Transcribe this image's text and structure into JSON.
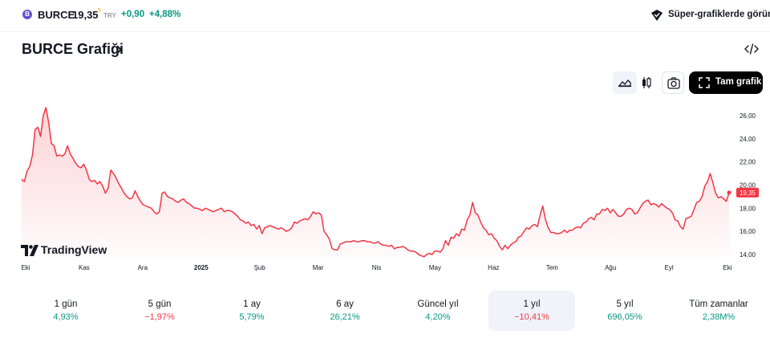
{
  "header": {
    "symbol": "BURCE",
    "logo_letter": "B",
    "price": "19,35",
    "price_superscript": "5",
    "currency": "TRY",
    "change": "+0,90",
    "change_percent": "+4,88%",
    "super_chart_link": "Süper-grafiklerde görün",
    "positive_color": "#089981",
    "negative_color": "#f23645"
  },
  "page": {
    "title": "BURCE Grafiği",
    "title_chevron": "›"
  },
  "toolbar": {
    "area_icon": "area-chart-icon",
    "candle_icon": "candlestick-icon",
    "camera_icon": "camera-icon",
    "fullscreen_label": "Tam grafik"
  },
  "chart_data": {
    "type": "area",
    "line_color": "#f23645",
    "y_ticks": [
      "26,00",
      "24,00",
      "22,00",
      "20,00",
      "18,00",
      "16,00",
      "14,00"
    ],
    "y_tick_values": [
      26,
      24,
      22,
      20,
      18,
      16,
      14
    ],
    "ylim": [
      13.3,
      27.3
    ],
    "x_ticks": [
      "Eki",
      "Kas",
      "Ara",
      "2025",
      "Şub",
      "Mar",
      "Nis",
      "May",
      "Haz",
      "Tem",
      "Ağu",
      "Eyl",
      "Eki"
    ],
    "x_tick_bold": [
      false,
      false,
      false,
      true,
      false,
      false,
      false,
      false,
      false,
      false,
      false,
      false,
      false
    ],
    "last_value_label": "19,35",
    "last_value": 19.35,
    "values": [
      20.5,
      20.3,
      21.2,
      21.6,
      22.6,
      24.8,
      25.0,
      24.2,
      26.0,
      26.7,
      25.4,
      23.6,
      23.4,
      22.5,
      22.6,
      22.5,
      22.7,
      23.4,
      22.7,
      22.3,
      21.9,
      21.6,
      21.5,
      21.8,
      21.3,
      20.5,
      20.3,
      20.4,
      20.1,
      20.3,
      19.9,
      19.3,
      19.7,
      21.3,
      21.0,
      20.6,
      20.1,
      19.7,
      19.3,
      19.0,
      18.8,
      18.9,
      19.5,
      19.0,
      18.6,
      18.3,
      18.2,
      18.1,
      18.0,
      17.7,
      17.5,
      17.7,
      19.3,
      19.4,
      19.0,
      18.9,
      18.8,
      18.6,
      18.5,
      18.7,
      18.8,
      18.5,
      18.4,
      18.2,
      18.0,
      18.0,
      17.9,
      17.8,
      18.0,
      17.9,
      17.8,
      17.7,
      17.8,
      17.9,
      18.0,
      17.7,
      17.8,
      17.8,
      17.7,
      17.5,
      17.3,
      17.0,
      16.9,
      16.7,
      16.8,
      16.5,
      16.6,
      16.2,
      16.5,
      15.8,
      16.3,
      16.4,
      16.5,
      16.4,
      16.3,
      16.2,
      16.3,
      16.2,
      16.0,
      16.1,
      16.3,
      16.8,
      16.7,
      16.9,
      17.0,
      17.1,
      17.0,
      17.3,
      17.7,
      17.5,
      17.6,
      17.4,
      16.0,
      15.7,
      15.3,
      14.5,
      14.4,
      14.4,
      14.9,
      15.0,
      15.1,
      15.1,
      15.1,
      15.2,
      15.1,
      15.1,
      15.2,
      15.2,
      15.1,
      15.1,
      15.0,
      15.0,
      15.1,
      14.9,
      14.8,
      14.8,
      14.7,
      14.8,
      14.5,
      14.6,
      14.6,
      14.7,
      14.6,
      14.4,
      14.3,
      14.3,
      14.2,
      14.0,
      13.9,
      13.8,
      14.0,
      14.1,
      14.0,
      14.3,
      14.3,
      14.2,
      14.5,
      15.2,
      14.8,
      15.5,
      15.4,
      15.8,
      15.6,
      16.2,
      16.1,
      17.0,
      17.4,
      18.5,
      17.6,
      17.4,
      16.8,
      16.3,
      16.1,
      15.7,
      15.8,
      15.4,
      15.2,
      14.7,
      14.4,
      14.8,
      14.5,
      14.8,
      15.0,
      15.1,
      15.5,
      15.6,
      16.0,
      16.3,
      16.2,
      16.5,
      16.6,
      16.4,
      17.4,
      18.2,
      17.0,
      16.3,
      15.9,
      15.9,
      15.8,
      15.8,
      15.9,
      16.1,
      15.9,
      16.1,
      16.1,
      16.3,
      16.4,
      16.3,
      16.7,
      16.8,
      17.1,
      17.2,
      17.0,
      17.5,
      17.5,
      17.9,
      17.8,
      18.0,
      17.6,
      17.9,
      17.6,
      17.3,
      17.3,
      17.5,
      17.9,
      18.0,
      17.9,
      17.5,
      17.6,
      18.0,
      18.4,
      18.6,
      18.7,
      18.3,
      18.4,
      18.3,
      18.1,
      18.4,
      18.2,
      18.0,
      17.9,
      17.6,
      17.0,
      16.9,
      16.4,
      16.2,
      17.1,
      17.2,
      17.3,
      17.9,
      18.5,
      18.6,
      19.0,
      19.9,
      20.3,
      21.0,
      20.2,
      19.3,
      18.9,
      19.0,
      18.8,
      18.6,
      19.35
    ]
  },
  "watermark": {
    "label": "TradingView"
  },
  "ranges": [
    {
      "label": "1 gün",
      "value": "4,93%",
      "positive": true,
      "selected": false
    },
    {
      "label": "5 gün",
      "value": "−1,97%",
      "positive": false,
      "selected": false
    },
    {
      "label": "1 ay",
      "value": "5,79%",
      "positive": true,
      "selected": false
    },
    {
      "label": "6 ay",
      "value": "26,21%",
      "positive": true,
      "selected": false
    },
    {
      "label": "Güncel yıl",
      "value": "4,20%",
      "positive": true,
      "selected": false
    },
    {
      "label": "1 yıl",
      "value": "−10,41%",
      "positive": false,
      "selected": true
    },
    {
      "label": "5 yıl",
      "value": "696,05%",
      "positive": true,
      "selected": false
    },
    {
      "label": "Tüm zamanlar",
      "value": "2,38M%",
      "positive": true,
      "selected": false
    }
  ]
}
